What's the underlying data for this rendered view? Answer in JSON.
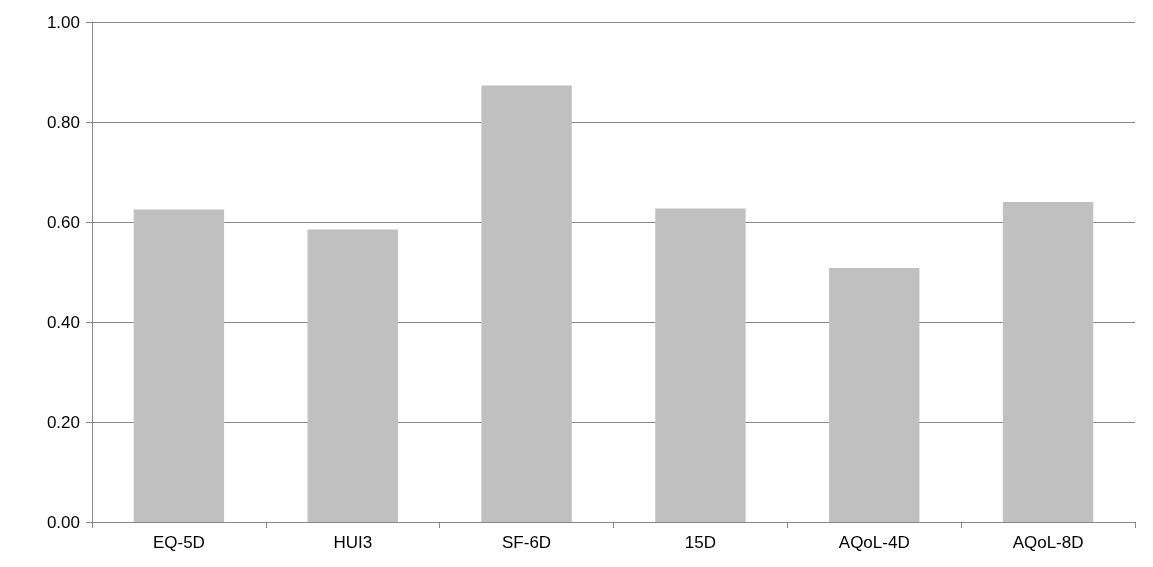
{
  "chart_data": {
    "type": "bar",
    "categories": [
      "EQ-5D",
      "HUI3",
      "SF-6D",
      "15D",
      "AQoL-4D",
      "AQoL-8D"
    ],
    "values": [
      0.625,
      0.585,
      0.873,
      0.627,
      0.508,
      0.64
    ],
    "color": "#c0c0c0",
    "ylim": [
      0,
      1
    ],
    "yticks": [
      {
        "value": 0,
        "label": "0.00"
      },
      {
        "value": 0.2,
        "label": "0.20"
      },
      {
        "value": 0.4,
        "label": "0.40"
      },
      {
        "value": 0.6,
        "label": "0.60"
      },
      {
        "value": 0.8,
        "label": "0.80"
      },
      {
        "value": 1,
        "label": "1.00"
      }
    ],
    "grid": "y"
  }
}
